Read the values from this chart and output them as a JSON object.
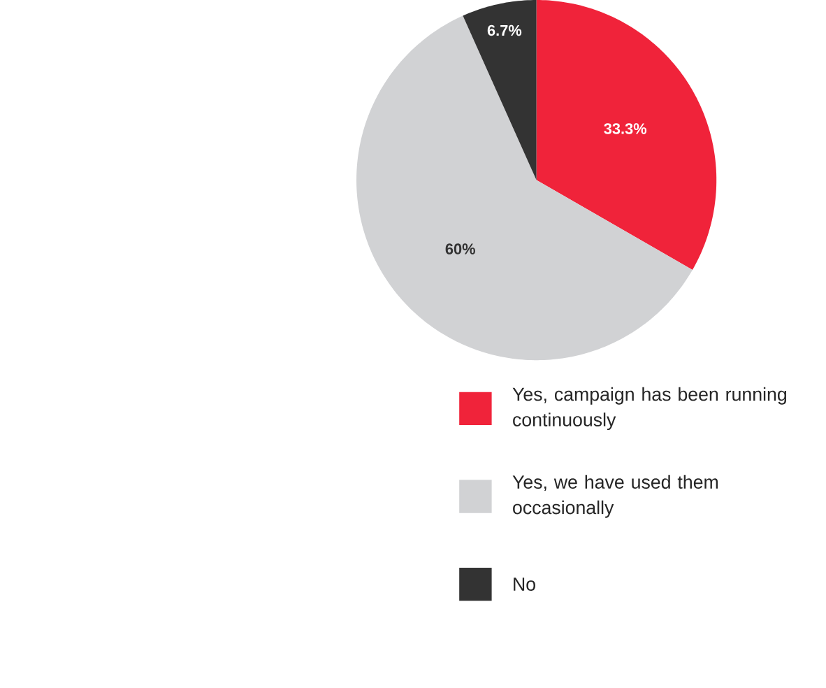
{
  "chart_data": {
    "type": "pie",
    "categories": [
      "Yes, campaign has been running continuously",
      "Yes, we have used them occasionally",
      "No"
    ],
    "values": [
      33.3,
      60,
      6.7
    ],
    "colors": [
      "#f0233a",
      "#d1d2d4",
      "#333333"
    ],
    "value_labels": [
      "33.3%",
      "60%",
      "6.7%"
    ],
    "legend": "right"
  }
}
